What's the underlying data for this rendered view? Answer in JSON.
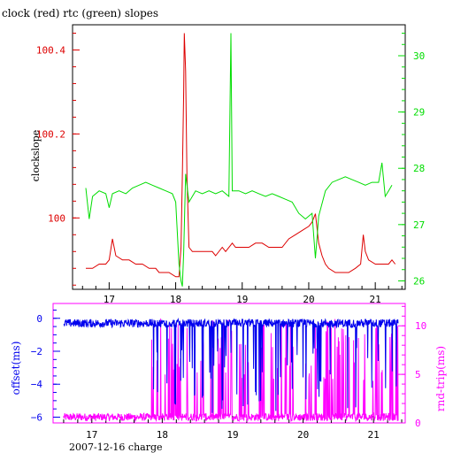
{
  "colors": {
    "red": "#dd0000",
    "green": "#00dd00",
    "blue": "#0000ee",
    "magenta": "#ff00ff",
    "black": "#000000"
  },
  "top_title": "clock (red) rtc (green) slopes",
  "bottom_xlabel": "2007-12-16 charge",
  "chart_data": [
    {
      "type": "line",
      "title": "clock (red) rtc (green) slopes",
      "ylabel_left": "clockslope",
      "ylabel_right": "",
      "xlim": [
        16.45,
        21.45
      ],
      "ylim_left": [
        99.83,
        100.46
      ],
      "ylim_right": [
        25.85,
        30.55
      ],
      "x_ticks": [
        17,
        18,
        19,
        20,
        21
      ],
      "x_tick_labels": [
        "17",
        "18",
        "19",
        "20",
        "21"
      ],
      "y_left_ticks": [
        100,
        100.2,
        100.4
      ],
      "y_left_tick_labels": [
        "100",
        "100.2",
        "100.4"
      ],
      "y_right_ticks": [
        26,
        27,
        28,
        29,
        30
      ],
      "y_right_tick_labels": [
        "26",
        "27",
        "28",
        "29",
        "30"
      ],
      "series": [
        {
          "name": "clock",
          "color": "#dd0000",
          "axis": "left",
          "points": [
            [
              16.65,
              99.88
            ],
            [
              16.75,
              99.88
            ],
            [
              16.85,
              99.89
            ],
            [
              16.95,
              99.89
            ],
            [
              17.0,
              99.9
            ],
            [
              17.05,
              99.95
            ],
            [
              17.1,
              99.91
            ],
            [
              17.2,
              99.9
            ],
            [
              17.3,
              99.9
            ],
            [
              17.4,
              99.89
            ],
            [
              17.5,
              99.89
            ],
            [
              17.6,
              99.88
            ],
            [
              17.7,
              99.88
            ],
            [
              17.75,
              99.87
            ],
            [
              17.8,
              99.87
            ],
            [
              17.9,
              99.87
            ],
            [
              18.0,
              99.86
            ],
            [
              18.05,
              99.86
            ],
            [
              18.08,
              99.93
            ],
            [
              18.1,
              100.1
            ],
            [
              18.12,
              100.3
            ],
            [
              18.13,
              100.44
            ],
            [
              18.15,
              100.35
            ],
            [
              18.17,
              100.1
            ],
            [
              18.2,
              99.93
            ],
            [
              18.25,
              99.92
            ],
            [
              18.35,
              99.92
            ],
            [
              18.45,
              99.92
            ],
            [
              18.55,
              99.92
            ],
            [
              18.6,
              99.91
            ],
            [
              18.7,
              99.93
            ],
            [
              18.75,
              99.92
            ],
            [
              18.85,
              99.94
            ],
            [
              18.9,
              99.93
            ],
            [
              19.0,
              99.93
            ],
            [
              19.1,
              99.93
            ],
            [
              19.2,
              99.94
            ],
            [
              19.3,
              99.94
            ],
            [
              19.4,
              99.93
            ],
            [
              19.5,
              99.93
            ],
            [
              19.6,
              99.93
            ],
            [
              19.7,
              99.95
            ],
            [
              19.8,
              99.96
            ],
            [
              19.9,
              99.97
            ],
            [
              20.0,
              99.98
            ],
            [
              20.05,
              99.99
            ],
            [
              20.1,
              100.01
            ],
            [
              20.15,
              99.94
            ],
            [
              20.2,
              99.91
            ],
            [
              20.25,
              99.89
            ],
            [
              20.3,
              99.88
            ],
            [
              20.4,
              99.87
            ],
            [
              20.5,
              99.87
            ],
            [
              20.6,
              99.87
            ],
            [
              20.7,
              99.88
            ],
            [
              20.78,
              99.89
            ],
            [
              20.82,
              99.96
            ],
            [
              20.85,
              99.92
            ],
            [
              20.9,
              99.9
            ],
            [
              21.0,
              99.89
            ],
            [
              21.1,
              99.89
            ],
            [
              21.2,
              99.89
            ],
            [
              21.25,
              99.9
            ],
            [
              21.3,
              99.89
            ]
          ]
        },
        {
          "name": "rtc",
          "color": "#00dd00",
          "axis": "right",
          "points": [
            [
              16.65,
              27.65
            ],
            [
              16.7,
              27.1
            ],
            [
              16.75,
              27.5
            ],
            [
              16.85,
              27.6
            ],
            [
              16.95,
              27.55
            ],
            [
              17.0,
              27.3
            ],
            [
              17.05,
              27.55
            ],
            [
              17.15,
              27.6
            ],
            [
              17.25,
              27.55
            ],
            [
              17.35,
              27.65
            ],
            [
              17.45,
              27.7
            ],
            [
              17.55,
              27.75
            ],
            [
              17.65,
              27.7
            ],
            [
              17.75,
              27.65
            ],
            [
              17.85,
              27.6
            ],
            [
              17.95,
              27.55
            ],
            [
              18.0,
              27.4
            ],
            [
              18.05,
              26.3
            ],
            [
              18.08,
              26.0
            ],
            [
              18.1,
              25.9
            ],
            [
              18.12,
              26.5
            ],
            [
              18.15,
              27.9
            ],
            [
              18.2,
              27.4
            ],
            [
              18.3,
              27.6
            ],
            [
              18.4,
              27.55
            ],
            [
              18.5,
              27.6
            ],
            [
              18.6,
              27.55
            ],
            [
              18.7,
              27.6
            ],
            [
              18.8,
              27.5
            ],
            [
              18.83,
              30.4
            ],
            [
              18.85,
              27.6
            ],
            [
              18.95,
              27.6
            ],
            [
              19.05,
              27.55
            ],
            [
              19.15,
              27.6
            ],
            [
              19.25,
              27.55
            ],
            [
              19.35,
              27.5
            ],
            [
              19.45,
              27.55
            ],
            [
              19.55,
              27.5
            ],
            [
              19.65,
              27.45
            ],
            [
              19.75,
              27.4
            ],
            [
              19.85,
              27.2
            ],
            [
              19.95,
              27.1
            ],
            [
              20.05,
              27.2
            ],
            [
              20.1,
              26.4
            ],
            [
              20.15,
              27.15
            ],
            [
              20.25,
              27.6
            ],
            [
              20.35,
              27.75
            ],
            [
              20.45,
              27.8
            ],
            [
              20.55,
              27.85
            ],
            [
              20.65,
              27.8
            ],
            [
              20.75,
              27.75
            ],
            [
              20.85,
              27.7
            ],
            [
              20.95,
              27.75
            ],
            [
              21.05,
              27.75
            ],
            [
              21.1,
              28.1
            ],
            [
              21.15,
              27.5
            ],
            [
              21.2,
              27.6
            ],
            [
              21.25,
              27.7
            ]
          ]
        }
      ]
    },
    {
      "type": "line",
      "title": "",
      "xlabel": "2007-12-16 charge",
      "ylabel_left": "offset(ms)",
      "ylabel_right": "rnd-trip(ms)",
      "xlim": [
        16.45,
        21.45
      ],
      "ylim_left": [
        -6.35,
        0.9
      ],
      "ylim_right": [
        0,
        12.3
      ],
      "x_ticks": [
        17,
        18,
        19,
        20,
        21
      ],
      "x_tick_labels": [
        "17",
        "18",
        "19",
        "20",
        "21"
      ],
      "y_left_ticks": [
        0,
        -2,
        -4,
        -6
      ],
      "y_left_tick_labels": [
        "0",
        "−2",
        "−4",
        "−6"
      ],
      "y_right_ticks": [
        0,
        5,
        10
      ],
      "y_right_tick_labels": [
        "0",
        "5",
        "10"
      ],
      "series": [
        {
          "name": "offset",
          "color": "#0000ee",
          "axis": "left",
          "range": [
            16.6,
            21.35
          ],
          "base": -0.3,
          "jitter": 0.25,
          "noisy_from": 17.85,
          "deep_to": -5.8
        },
        {
          "name": "rnd-trip",
          "color": "#ff00ff",
          "axis": "right",
          "range": [
            16.6,
            21.35
          ],
          "base": 0.6,
          "jitter": 0.4,
          "spikes_from": 17.85,
          "spike_to": 10.8
        }
      ]
    }
  ]
}
